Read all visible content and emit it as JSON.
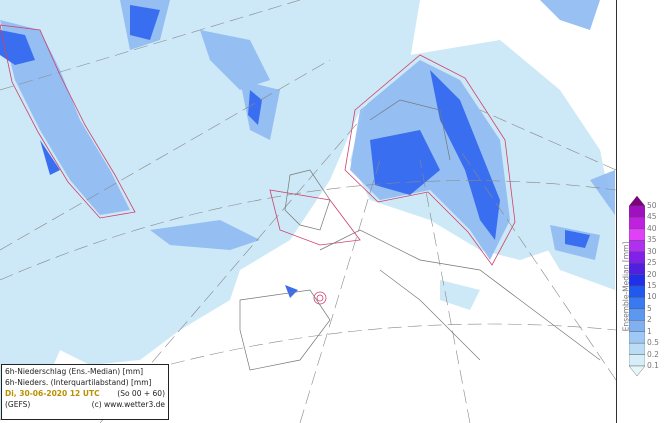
{
  "info": {
    "line1": "6h-Niederschlag (Ens.-Median) [mm]",
    "line2": "6h-Nieders. (Interquartilabstand) [mm]",
    "date": "Di, 30-06-2020   12 UTC",
    "run": "(So 00 + 60)",
    "model": "(GEFS)",
    "credit": "(c) www.wetter3.de"
  },
  "legend": {
    "title": "Ensemble-Median [mm]",
    "levels": [
      "50",
      "45",
      "40",
      "35",
      "30",
      "25",
      "20",
      "15",
      "10",
      "5",
      "2",
      "1",
      "0.5",
      "0.2",
      "0.1"
    ],
    "colors": [
      "#800080",
      "#a010c0",
      "#c020e0",
      "#e040f8",
      "#b030f0",
      "#8020e8",
      "#5020e0",
      "#2030e8",
      "#2058f0",
      "#3a7af0",
      "#5c98f0",
      "#80b0f0",
      "#a0c8f4",
      "#bcdcf6",
      "#d6eef8",
      "#e6f7fa"
    ]
  },
  "map": {
    "sea_precip_color": "#cde8f6",
    "heavy_color": "#3a6ef0",
    "contour_color": "#d0406a"
  }
}
